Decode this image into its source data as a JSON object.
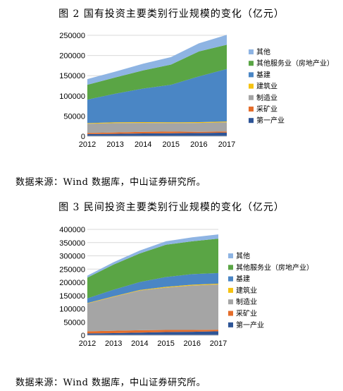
{
  "charts_text": {
    "title1": "图 2  国有投资主要类别行业规模的变化（亿元）",
    "source1": "数据来源：Wind 数据库，中山证券研究所。",
    "title2": "图 3  民间投资主要类别行业规模的变化（亿元）",
    "source2": "数据来源：Wind 数据库，中山证券研究所。"
  },
  "chart_data": [
    {
      "type": "area",
      "stacked": true,
      "title": "图 2  国有投资主要类别行业规模的变化（亿元）",
      "x": [
        "2012",
        "2013",
        "2014",
        "2015",
        "2016",
        "2017"
      ],
      "ylim": [
        0,
        250000
      ],
      "yticks": [
        "0",
        "50000",
        "100000",
        "150000",
        "200000",
        "250000"
      ],
      "legend_position": "right",
      "series": [
        {
          "name": "第一产业",
          "color": "#2e5597",
          "values": [
            5000,
            6000,
            7000,
            7500,
            8000,
            9000
          ]
        },
        {
          "name": "采矿业",
          "color": "#e46d2b",
          "values": [
            3000,
            3500,
            4000,
            4000,
            3000,
            2500
          ]
        },
        {
          "name": "制造业",
          "color": "#a5a5a5",
          "values": [
            23000,
            23000,
            22000,
            21000,
            22000,
            23000
          ]
        },
        {
          "name": "建筑业",
          "color": "#f5c211",
          "values": [
            1500,
            2000,
            2000,
            2000,
            2000,
            2000
          ]
        },
        {
          "name": "基建",
          "color": "#4a86c5",
          "values": [
            58000,
            71000,
            83000,
            93000,
            113000,
            130000
          ]
        },
        {
          "name": "其他服务业（房地产业）",
          "color": "#5aa545",
          "values": [
            37000,
            40000,
            45000,
            50000,
            62000,
            60000
          ]
        },
        {
          "name": "其他",
          "color": "#8eb4e3",
          "values": [
            14000,
            14500,
            16500,
            18500,
            20000,
            24500
          ]
        }
      ]
    },
    {
      "type": "area",
      "stacked": true,
      "title": "图 3  民间投资主要类别行业规模的变化（亿元）",
      "x": [
        "2012",
        "2013",
        "2014",
        "2015",
        "2016",
        "2017"
      ],
      "ylim": [
        0,
        400000
      ],
      "yticks": [
        "0",
        "50000",
        "100000",
        "150000",
        "200000",
        "250000",
        "300000",
        "350000",
        "400000"
      ],
      "legend_position": "right",
      "series": [
        {
          "name": "第一产业",
          "color": "#2e5597",
          "values": [
            7000,
            8000,
            10000,
            12000,
            13000,
            15000
          ]
        },
        {
          "name": "采矿业",
          "color": "#e46d2b",
          "values": [
            8000,
            9000,
            9000,
            8000,
            7000,
            6000
          ]
        },
        {
          "name": "制造业",
          "color": "#a5a5a5",
          "values": [
            105000,
            128000,
            150000,
            160000,
            168000,
            171000
          ]
        },
        {
          "name": "建筑业",
          "color": "#f5c211",
          "values": [
            1500,
            2000,
            2000,
            3000,
            3000,
            3000
          ]
        },
        {
          "name": "基建",
          "color": "#4a86c5",
          "values": [
            18000,
            25000,
            30000,
            37000,
            40000,
            40000
          ]
        },
        {
          "name": "其他服务业（房地产业）",
          "color": "#5aa545",
          "values": [
            78000,
            95000,
            108000,
            122000,
            124000,
            130000
          ]
        },
        {
          "name": "其他",
          "color": "#8eb4e3",
          "values": [
            7500,
            9000,
            11000,
            13000,
            15000,
            16000
          ]
        }
      ]
    }
  ]
}
